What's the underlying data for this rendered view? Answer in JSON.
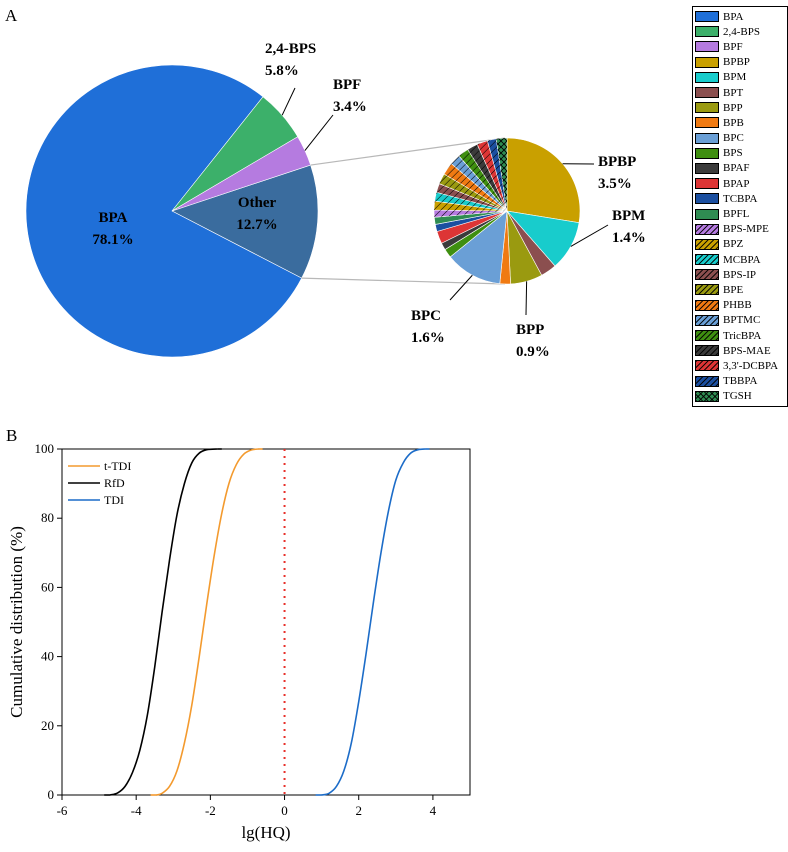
{
  "panels": {
    "a": "A",
    "b": "B"
  },
  "chart_data": [
    {
      "type": "pie",
      "panel": "A",
      "slices": [
        {
          "name": "BPA",
          "label": "BPA",
          "value_label": "78.1%",
          "value": 78.1,
          "color": "#1f6fd8"
        },
        {
          "name": "2,4-BPS",
          "label": "2,4-BPS",
          "value_label": "5.8%",
          "value": 5.8,
          "color": "#3cb06a"
        },
        {
          "name": "BPF",
          "label": "BPF",
          "value_label": "3.4%",
          "value": 3.4,
          "color": "#b57be0"
        },
        {
          "name": "Other",
          "label": "Other",
          "value_label": "12.7%",
          "value": 12.7,
          "color": "#3a6c9e"
        }
      ]
    },
    {
      "type": "pie",
      "panel": "A",
      "description_of": "breakdown of Other",
      "slices": [
        {
          "name": "BPBP",
          "value": 3.5,
          "label": "BPBP",
          "value_label": "3.5%"
        },
        {
          "name": "BPM",
          "value": 1.4,
          "label": "BPM",
          "value_label": "1.4%"
        },
        {
          "name": "BPT",
          "value": 0.45
        },
        {
          "name": "BPP",
          "value": 0.9,
          "label": "BPP",
          "value_label": "0.9%"
        },
        {
          "name": "BPB",
          "value": 0.3
        },
        {
          "name": "BPC",
          "value": 1.6,
          "label": "BPC",
          "value_label": "1.6%"
        },
        {
          "name": "BPS",
          "value": 0.25
        },
        {
          "name": "BPAF",
          "value": 0.2
        },
        {
          "name": "BPAP",
          "value": 0.35
        },
        {
          "name": "TCBPA",
          "value": 0.2
        },
        {
          "name": "BPFL",
          "value": 0.2
        },
        {
          "name": "BPS-MPE",
          "value": 0.2
        },
        {
          "name": "BPZ",
          "value": 0.25
        },
        {
          "name": "MCBPA",
          "value": 0.25
        },
        {
          "name": "BPS-IP",
          "value": 0.25
        },
        {
          "name": "BPE",
          "value": 0.3
        },
        {
          "name": "PHBB",
          "value": 0.35
        },
        {
          "name": "BPTMC",
          "value": 0.3
        },
        {
          "name": "TricBPA",
          "value": 0.3
        },
        {
          "name": "BPS-MAE",
          "value": 0.3
        },
        {
          "name": "3,3'-DCBPA",
          "value": 0.3
        },
        {
          "name": "TBBPA",
          "value": 0.25
        },
        {
          "name": "TGSH",
          "value": 0.3
        }
      ]
    },
    {
      "type": "line",
      "panel": "B",
      "xlabel": "lg(HQ)",
      "ylabel": "Cumulative distribution (%)",
      "xlim": [
        -6,
        5
      ],
      "ylim": [
        0,
        100
      ],
      "xticks": [
        -6,
        -4,
        -2,
        0,
        2,
        4
      ],
      "yticks": [
        0,
        20,
        40,
        60,
        80,
        100
      ],
      "legend_position": "top-left",
      "reference_line": {
        "x": 0,
        "color": "#e8302a",
        "style": "dotted"
      },
      "series": [
        {
          "name": "t-TDI",
          "color": "#f39a2e",
          "x": [
            -3.45,
            -3.3,
            -3.1,
            -2.9,
            -2.7,
            -2.5,
            -2.3,
            -2.1,
            -1.9,
            -1.7,
            -1.5,
            -1.3,
            -1.1,
            -0.9,
            -0.7
          ],
          "y": [
            0,
            0.5,
            2.5,
            7,
            15,
            26,
            40,
            55,
            69,
            81,
            90,
            95.5,
            98.5,
            99.7,
            100
          ]
        },
        {
          "name": "RfD",
          "color": "#000000",
          "x": [
            -4.7,
            -4.5,
            -4.3,
            -4.1,
            -3.9,
            -3.7,
            -3.5,
            -3.3,
            -3.1,
            -2.9,
            -2.7,
            -2.5,
            -2.3,
            -2.1,
            -1.8
          ],
          "y": [
            0,
            0.6,
            2.5,
            6.5,
            13,
            23,
            37,
            53,
            68,
            81,
            90,
            96,
            98.8,
            99.8,
            100
          ]
        },
        {
          "name": "TDI",
          "color": "#1c6cc8",
          "x": [
            1.0,
            1.2,
            1.4,
            1.6,
            1.8,
            2.0,
            2.2,
            2.4,
            2.6,
            2.8,
            3.0,
            3.2,
            3.4,
            3.6,
            3.8
          ],
          "y": [
            0,
            0.5,
            2.5,
            7,
            15,
            27,
            41,
            56,
            70,
            82,
            91,
            96,
            98.8,
            99.8,
            100
          ]
        }
      ]
    }
  ],
  "legend": {
    "items": [
      {
        "label": "BPA",
        "color": "#1f6fd8",
        "hatch": false
      },
      {
        "label": "2,4-BPS",
        "color": "#3cb06a",
        "hatch": false
      },
      {
        "label": "BPF",
        "color": "#b57be0",
        "hatch": false
      },
      {
        "label": "BPBP",
        "color": "#c9a000",
        "hatch": false
      },
      {
        "label": "BPM",
        "color": "#18cccc",
        "hatch": false
      },
      {
        "label": "BPT",
        "color": "#8b4f4f",
        "hatch": false
      },
      {
        "label": "BPP",
        "color": "#9a9a10",
        "hatch": false
      },
      {
        "label": "BPB",
        "color": "#f07a12",
        "hatch": false
      },
      {
        "label": "BPC",
        "color": "#6a9fd6",
        "hatch": false
      },
      {
        "label": "BPS",
        "color": "#3f8f10",
        "hatch": false
      },
      {
        "label": "BPAF",
        "color": "#3b3b3b",
        "hatch": false
      },
      {
        "label": "BPAP",
        "color": "#dd3535",
        "hatch": false
      },
      {
        "label": "TCBPA",
        "color": "#1b4fa0",
        "hatch": false
      },
      {
        "label": "BPFL",
        "color": "#2f8c52",
        "hatch": false
      },
      {
        "label": "BPS-MPE",
        "color": "#b57be0",
        "hatch": true
      },
      {
        "label": "BPZ",
        "color": "#c9a000",
        "hatch": true
      },
      {
        "label": "MCBPA",
        "color": "#18cccc",
        "hatch": true
      },
      {
        "label": "BPS-IP",
        "color": "#8b4f4f",
        "hatch": true
      },
      {
        "label": "BPE",
        "color": "#9a9a10",
        "hatch": true
      },
      {
        "label": "PHBB",
        "color": "#f07a12",
        "hatch": true
      },
      {
        "label": "BPTMC",
        "color": "#6a9fd6",
        "hatch": true
      },
      {
        "label": "TricBPA",
        "color": "#3f8f10",
        "hatch": true
      },
      {
        "label": "BPS-MAE",
        "color": "#3b3b3b",
        "hatch": true
      },
      {
        "label": "3,3'-DCBPA",
        "color": "#dd3535",
        "hatch": true
      },
      {
        "label": "TBBPA",
        "color": "#1b4fa0",
        "hatch": true
      },
      {
        "label": "TGSH",
        "color": "#2f8c52",
        "hatch": "cross"
      }
    ]
  }
}
